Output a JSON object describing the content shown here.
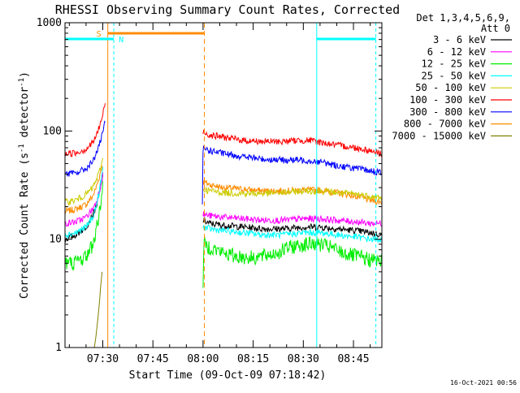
{
  "title": "RHESSI Observing Summary Count Rates, Corrected",
  "timestamp": "16-Oct-2021 00:56",
  "legend": {
    "header": "Det 1,3,4,5,6,9,",
    "header2": "Att 0",
    "entries": [
      {
        "label": "3 - 6 keV",
        "color": "#000000"
      },
      {
        "label": "6 - 12 keV",
        "color": "#ff00ff"
      },
      {
        "label": "12 - 25 keV",
        "color": "#00ee00"
      },
      {
        "label": "25 - 50 keV",
        "color": "#00ffff"
      },
      {
        "label": "50 - 100 keV",
        "color": "#cccc00"
      },
      {
        "label": "100 - 300 keV",
        "color": "#ff0000"
      },
      {
        "label": "300 - 800 keV",
        "color": "#0000ff"
      },
      {
        "label": "800 - 7000 keV",
        "color": "#ff8c00"
      },
      {
        "label": "7000 - 15000 keV",
        "color": "#808000"
      }
    ]
  },
  "chart_data": {
    "type": "line",
    "title": "RHESSI Observing Summary Count Rates, Corrected",
    "xlabel": "Start Time (09-Oct-09 07:18:42)",
    "ylabel": "Corrected Count Rate (s⁻¹ detector⁻¹)",
    "yscale": "log",
    "ylim": [
      1,
      1000
    ],
    "xlim_minutes": [
      18.7,
      113.5
    ],
    "x_units": "minutes after 07:00 UT",
    "x_tick_labels": [
      "07:30",
      "07:45",
      "08:00",
      "08:15",
      "08:30",
      "08:45"
    ],
    "x_ticks_minutes": [
      30,
      45,
      60,
      75,
      90,
      105
    ],
    "y_tick_labels": [
      "1",
      "10",
      "100",
      "1000"
    ],
    "y_ticks": [
      1,
      10,
      100,
      1000
    ],
    "gap": [
      31.5,
      59.7
    ],
    "series": [
      {
        "name": "3 - 6 keV",
        "color": "#000000",
        "segments": [
          {
            "x": [
              18.7,
              22,
              25,
              27,
              28,
              29,
              30
            ],
            "y": [
              10,
              11,
              13,
              17,
              20,
              26,
              38
            ]
          },
          {
            "x": [
              60,
              62,
              66,
              72,
              78,
              84,
              90,
              95,
              100,
              106,
              110,
              113.5
            ],
            "y": [
              15,
              14,
              13.5,
              13,
              12.5,
              12.5,
              13,
              13,
              12.5,
              12,
              11.5,
              11
            ]
          }
        ]
      },
      {
        "name": "6 - 12 keV",
        "color": "#ff00ff",
        "segments": [
          {
            "x": [
              18.7,
              22,
              25,
              27,
              28,
              29,
              30
            ],
            "y": [
              14,
              14.5,
              16,
              19,
              22,
              28,
              40
            ]
          },
          {
            "x": [
              60,
              62,
              66,
              72,
              78,
              84,
              90,
              95,
              100,
              106,
              110,
              113.5
            ],
            "y": [
              17,
              16.5,
              16,
              15.5,
              15,
              15,
              15.5,
              15.5,
              15,
              14.5,
              14,
              14
            ]
          }
        ]
      },
      {
        "name": "12 - 25 keV",
        "color": "#00ee00",
        "segments": [
          {
            "x": [
              18.7,
              22,
              25,
              27,
              28,
              29,
              30
            ],
            "y": [
              6,
              6.2,
              7,
              9,
              12,
              18,
              30
            ]
          },
          {
            "x": [
              60,
              60.2,
              62,
              66,
              70,
              74,
              78,
              82,
              86,
              90,
              94,
              98,
              102,
              106,
              110,
              113.5
            ],
            "y": [
              4,
              9,
              8.5,
              7.5,
              7,
              6.8,
              7,
              7.5,
              8.5,
              9,
              9.2,
              8.5,
              7.5,
              7,
              6.5,
              6.3
            ]
          }
        ]
      },
      {
        "name": "25 - 50 keV",
        "color": "#00ffff",
        "segments": [
          {
            "x": [
              18.7,
              22,
              25,
              27,
              28,
              29,
              30
            ],
            "y": [
              11,
              11.5,
              13,
              16,
              20,
              28,
              45
            ]
          },
          {
            "x": [
              60,
              62,
              66,
              72,
              78,
              84,
              90,
              95,
              100,
              106,
              110,
              113.5
            ],
            "y": [
              13,
              12.5,
              12,
              11.5,
              11,
              11,
              11.5,
              11.5,
              11,
              10.5,
              10,
              10
            ]
          }
        ]
      },
      {
        "name": "50 - 100 keV",
        "color": "#cccc00",
        "segments": [
          {
            "x": [
              18.7,
              22,
              25,
              27,
              28,
              29,
              30
            ],
            "y": [
              22,
              23,
              26,
              30,
              35,
              42,
              55
            ]
          },
          {
            "x": [
              60,
              62,
              66,
              72,
              78,
              84,
              90,
              95,
              100,
              106,
              110,
              113.5
            ],
            "y": [
              29,
              28,
              27,
              26.5,
              26.5,
              27,
              28,
              28,
              27,
              26,
              25,
              24
            ]
          }
        ]
      },
      {
        "name": "100 - 300 keV",
        "color": "#ff0000",
        "segments": [
          {
            "x": [
              18.7,
              22,
              25,
              27,
              28,
              29,
              30,
              30.7
            ],
            "y": [
              62,
              63,
              68,
              78,
              90,
              110,
              140,
              180
            ]
          },
          {
            "x": [
              60,
              62,
              66,
              72,
              78,
              84,
              88,
              92,
              96,
              100,
              106,
              110,
              113.5
            ],
            "y": [
              98,
              92,
              88,
              82,
              80,
              80,
              82,
              82,
              78,
              74,
              70,
              66,
              62
            ]
          }
        ]
      },
      {
        "name": "300 - 800 keV",
        "color": "#0000ff",
        "segments": [
          {
            "x": [
              18.7,
              22,
              25,
              27,
              28,
              29,
              30,
              30.7
            ],
            "y": [
              40,
              41,
              45,
              52,
              62,
              75,
              95,
              125
            ]
          },
          {
            "x": [
              59.8,
              60,
              62,
              66,
              72,
              78,
              84,
              90,
              95,
              100,
              106,
              110,
              113.5
            ],
            "y": [
              20,
              70,
              66,
              62,
              58,
              55,
              54,
              54,
              52,
              48,
              45,
              43,
              41
            ]
          }
        ]
      },
      {
        "name": "800 - 7000 keV",
        "color": "#ff8c00",
        "segments": [
          {
            "x": [
              18.7,
              22,
              25,
              27,
              28,
              29,
              30
            ],
            "y": [
              18,
              19,
              21,
              25,
              30,
              38,
              50
            ]
          },
          {
            "x": [
              60,
              62,
              66,
              72,
              78,
              84,
              90,
              95,
              100,
              106,
              110,
              113.5
            ],
            "y": [
              34,
              32,
              30,
              29,
              28,
              28,
              28.5,
              28.5,
              27,
              25,
              23,
              22
            ]
          }
        ]
      },
      {
        "name": "7000 - 15000 keV",
        "color": "#808000",
        "segments": [
          {
            "x": [
              27.5,
              28,
              28.5,
              29,
              29.3,
              29.6,
              29.8
            ],
            "y": [
              1,
              1.3,
              1.8,
              2.6,
              3.5,
              4.3,
              5
            ]
          }
        ]
      }
    ],
    "markers": {
      "saa_bars": [
        {
          "x0": 18.7,
          "x1": 33.3
        },
        {
          "x0": 94,
          "x1": 111.7
        }
      ],
      "night_label": "N",
      "night_x": 33.3,
      "night_bar_x0": 31.5,
      "night_bar_x1": 60.4,
      "saa_label": "S",
      "saa_x": 31.5,
      "lines_orange": [
        {
          "x": 31.5,
          "style": "solid"
        },
        {
          "x": 60.4,
          "style": "dashed"
        }
      ],
      "lines_cyan": [
        {
          "x": 18.7,
          "style": "solid"
        },
        {
          "x": 33.3,
          "style": "dashed"
        },
        {
          "x": 94,
          "style": "solid"
        },
        {
          "x": 111.7,
          "style": "dashed"
        }
      ]
    }
  }
}
